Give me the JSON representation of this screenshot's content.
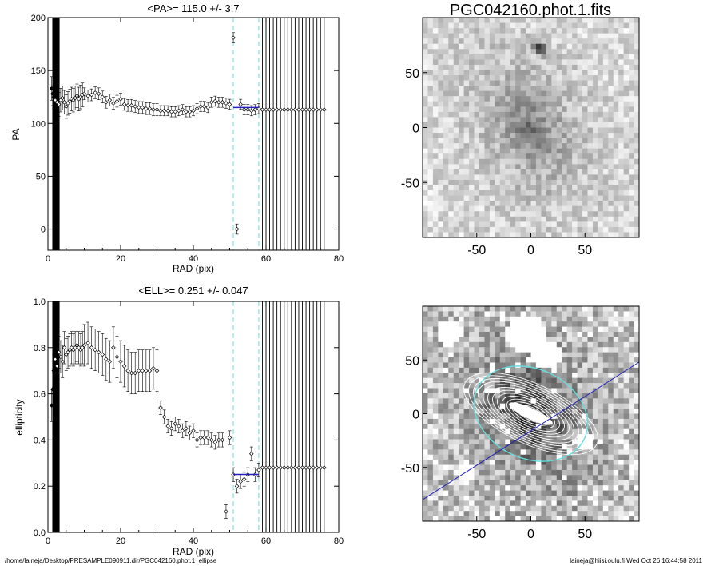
{
  "footer": {
    "left": "/home/laineja/Desktop/PRESAMPLE090911.dir/PGC042160.phot.1_ellipse",
    "right": "laineja@hiisi.oulu.fi  Wed Oct 26 16:44:58 2011"
  },
  "colors": {
    "cyan": "#66dddd",
    "blue": "#2222bb",
    "axis": "#000000"
  },
  "chart_data": [
    {
      "type": "scatter",
      "title": "<PA>= 115.0 +/-   3.7",
      "xlabel": "RAD (pix)",
      "ylabel": "PA",
      "xlim": [
        0,
        80
      ],
      "ylim": [
        -20,
        200
      ],
      "xticks": [
        "0",
        "20",
        "40",
        "60",
        "80"
      ],
      "yticks": [
        "0",
        "50",
        "100",
        "150",
        "200"
      ],
      "xtick_values": [
        0,
        20,
        40,
        60,
        80
      ],
      "ytick_values": [
        0,
        50,
        100,
        150,
        200
      ],
      "vlines_dashed": [
        51,
        58
      ],
      "vlines_solid": [
        59,
        60,
        61,
        62,
        63,
        64,
        65,
        66,
        67,
        68,
        69,
        70,
        71,
        72,
        73,
        74,
        75,
        76
      ],
      "mean_line": {
        "x": [
          51,
          58
        ],
        "y": 115.0
      },
      "series": [
        {
          "x": [
            1.0,
            1.3,
            1.6,
            2.0,
            2.5,
            3.0,
            3.5,
            4.0,
            4.5,
            5.0,
            5.5,
            6.0,
            6.5,
            7.0,
            7.5,
            8.0,
            8.5,
            9.0,
            9.5,
            10.0,
            11.0,
            12.0,
            13.0,
            14.0,
            15.0,
            16.0,
            17.0,
            18.0,
            19.0,
            20.0,
            21.0,
            22.0,
            23.0,
            24.0,
            25.0,
            26.0,
            27.0,
            28.0,
            29.0,
            30.0,
            31.0,
            32.0,
            33.0,
            34.0,
            35.0,
            36.0,
            37.0,
            38.0,
            39.0,
            40.0,
            41.0,
            42.0,
            43.0,
            44.0,
            45.0,
            46.0,
            47.0,
            48.0,
            49.0,
            50.0,
            51.0,
            52.0,
            53.0,
            54.0,
            55.0,
            56.0,
            57.0,
            58.0,
            59.0,
            60.0,
            61.0,
            62.0,
            63.0,
            64.0,
            65.0,
            66.0,
            67.0,
            68.0,
            69.0,
            70.0,
            71.0,
            72.0,
            73.0,
            74.0,
            75.0,
            76.0
          ],
          "y": [
            133,
            128,
            125,
            122,
            120,
            118,
            122,
            124,
            120,
            116,
            119,
            121,
            123,
            122,
            124,
            126,
            123,
            125,
            127,
            128,
            126,
            127,
            129,
            128,
            125,
            120,
            122,
            119,
            121,
            123,
            118,
            117,
            117,
            116,
            115,
            115,
            114,
            114,
            113,
            113,
            112,
            112,
            112,
            111,
            111,
            112,
            113,
            111,
            111,
            112,
            114,
            116,
            116,
            115,
            120,
            121,
            120,
            120,
            119,
            118,
            181,
            0,
            118,
            113,
            113,
            112,
            113,
            114,
            113,
            113,
            113,
            113,
            113,
            113,
            113,
            113,
            113,
            113,
            113,
            113,
            113,
            113,
            113,
            113,
            113,
            113
          ]
        }
      ]
    },
    {
      "type": "scatter",
      "title": "<ELL>= 0.251 +/-  0.047",
      "xlabel": "RAD (pix)",
      "ylabel": "ellipticity",
      "xlim": [
        0,
        80
      ],
      "ylim": [
        0,
        1
      ],
      "xticks": [
        "0",
        "20",
        "40",
        "60",
        "80"
      ],
      "yticks": [
        "0.0",
        "0.2",
        "0.4",
        "0.6",
        "0.8",
        "1.0"
      ],
      "xtick_values": [
        0,
        20,
        40,
        60,
        80
      ],
      "ytick_values": [
        0,
        0.2,
        0.4,
        0.6,
        0.8,
        1.0
      ],
      "vlines_dashed": [
        51,
        58
      ],
      "vlines_solid": [
        59,
        60,
        61,
        62,
        63,
        64,
        65,
        66,
        67,
        68,
        69,
        70,
        71,
        72,
        73,
        74,
        75,
        76
      ],
      "mean_line": {
        "x": [
          51,
          58
        ],
        "y": 0.251
      },
      "series": [
        {
          "x": [
            1.0,
            1.3,
            1.6,
            2.0,
            2.5,
            3.0,
            3.5,
            4.0,
            4.5,
            5.0,
            5.5,
            6.0,
            6.5,
            7.0,
            7.5,
            8.0,
            8.5,
            9.0,
            9.5,
            10.0,
            11.0,
            12.0,
            13.0,
            14.0,
            15.0,
            16.0,
            17.0,
            18.0,
            19.0,
            20.0,
            21.0,
            22.0,
            23.0,
            24.0,
            25.0,
            26.0,
            27.0,
            28.0,
            29.0,
            30.0,
            31.0,
            32.0,
            33.0,
            34.0,
            35.0,
            36.0,
            37.0,
            38.0,
            39.0,
            40.0,
            41.0,
            42.0,
            43.0,
            44.0,
            45.0,
            46.0,
            47.0,
            48.0,
            49.0,
            50.0,
            51.0,
            52.0,
            53.0,
            54.0,
            55.0,
            56.0,
            57.0,
            58.0,
            59.0,
            60.0,
            61.0,
            62.0,
            63.0,
            64.0,
            65.0,
            66.0,
            67.0,
            68.0,
            69.0,
            70.0,
            71.0,
            72.0,
            73.0,
            74.0,
            75.0,
            76.0
          ],
          "y": [
            0.55,
            0.62,
            0.7,
            0.75,
            0.72,
            0.78,
            0.76,
            0.74,
            0.8,
            0.77,
            0.78,
            0.79,
            0.8,
            0.79,
            0.8,
            0.81,
            0.8,
            0.79,
            0.8,
            0.81,
            0.82,
            0.8,
            0.79,
            0.78,
            0.77,
            0.75,
            0.74,
            0.8,
            0.76,
            0.74,
            0.72,
            0.7,
            0.69,
            0.69,
            0.7,
            0.7,
            0.7,
            0.7,
            0.71,
            0.7,
            0.54,
            0.5,
            0.46,
            0.45,
            0.47,
            0.46,
            0.44,
            0.45,
            0.43,
            0.44,
            0.4,
            0.41,
            0.41,
            0.41,
            0.4,
            0.39,
            0.4,
            0.4,
            0.09,
            0.41,
            0.25,
            0.2,
            0.22,
            0.23,
            0.25,
            0.34,
            0.25,
            0.27,
            0.28,
            0.28,
            0.28,
            0.28,
            0.28,
            0.28,
            0.28,
            0.28,
            0.28,
            0.28,
            0.28,
            0.28,
            0.28,
            0.28,
            0.28,
            0.28,
            0.28,
            0.28
          ]
        }
      ]
    },
    {
      "type": "heatmap",
      "title": "PGC042160.phot.1.fits",
      "xlim": [
        -100,
        100
      ],
      "ylim": [
        -100,
        100
      ],
      "xticks": [
        "-50",
        "0",
        "50"
      ],
      "yticks": [
        "-50",
        "0",
        "50"
      ],
      "xtick_values": [
        -50,
        0,
        50
      ],
      "ytick_values": [
        -50,
        0,
        50
      ]
    },
    {
      "type": "heatmap",
      "title": "",
      "xlim": [
        -100,
        100
      ],
      "ylim": [
        -100,
        100
      ],
      "xticks": [
        "-50",
        "0",
        "50"
      ],
      "yticks": [
        "-50",
        "0",
        "50"
      ],
      "xtick_values": [
        -50,
        0,
        50
      ],
      "ytick_values": [
        -50,
        0,
        50
      ],
      "major_axis_pa_deg": 115.0,
      "ellipticity": 0.251
    }
  ]
}
